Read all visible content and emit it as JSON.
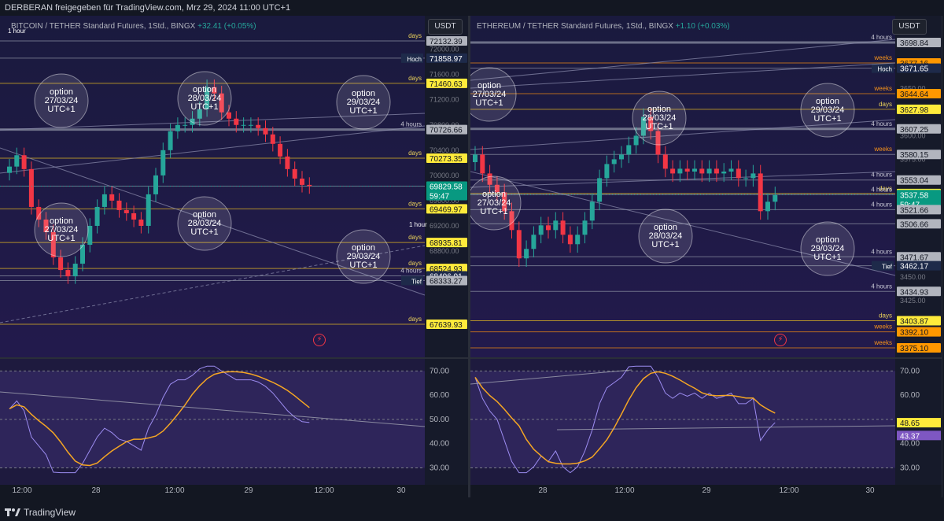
{
  "header": {
    "title": "DERBERAN freigegeben für TradingView.com, Mrz 29, 2024 11:00 UTC+1"
  },
  "footer": {
    "brand": "TradingView",
    "logo_icon": "tradingview-logo-icon"
  },
  "colors": {
    "bg": "#1e1844",
    "up": "#26a69a",
    "down": "#f23645",
    "days": "#ecd35a",
    "weeks": "#f7931a",
    "hours": "#c9c9d6",
    "rsi": "#9c8cf0",
    "rsi_ma": "#f5a623"
  },
  "left": {
    "legend_title": "BITCOIN / TETHER Standard Futures, 1Std., BINGX",
    "legend_change": "+32.41 (+0.05%)",
    "currency": "USDT",
    "price_ticks": [
      "72000.00",
      "71600.00",
      "71200.00",
      "70800.00",
      "70400.00",
      "70000.00",
      "69600.00",
      "69200.00",
      "68800.00",
      "68400.00"
    ],
    "labels": [
      {
        "price": "72132.39",
        "tag": "days",
        "kind": "gray"
      },
      {
        "price": "71858.97",
        "tag": "Hoch",
        "kind": "navy"
      },
      {
        "price": "71460.63",
        "tag": "days",
        "kind": "yellow"
      },
      {
        "price": "70726.66",
        "tag": "4 hours",
        "kind": "gray"
      },
      {
        "price": "70273.35",
        "tag": "days",
        "kind": "yellow"
      },
      {
        "price": "69829.58",
        "tag": "",
        "kind": "teal",
        "countdown": "59:47"
      },
      {
        "price": "69469.97",
        "tag": "days",
        "kind": "yellow"
      },
      {
        "price": "68935.81",
        "tag": "days",
        "kind": "yellow"
      },
      {
        "price": "68524.93",
        "tag": "days",
        "kind": "yellow"
      },
      {
        "price": "68406.91",
        "tag": "4 hours",
        "kind": "navy"
      },
      {
        "price": "68333.27",
        "tag": "Tief",
        "kind": "gray"
      },
      {
        "price": "67639.93",
        "tag": "days",
        "kind": "yellow"
      }
    ],
    "circles": [
      {
        "line1": "option",
        "line2": "27/03/24",
        "line3": "UTC+1"
      },
      {
        "line1": "option",
        "line2": "28/03/24",
        "line3": "UTC+1"
      },
      {
        "line1": "option",
        "line2": "29/03/24",
        "line3": "UTC+1"
      },
      {
        "line1": "option",
        "line2": "27/03/24",
        "line3": "UTC+1"
      },
      {
        "line1": "option",
        "line2": "28/03/24",
        "line3": "UTC+1"
      },
      {
        "line1": "option",
        "line2": "29/03/24",
        "line3": "UTC+1"
      }
    ],
    "line_tags": [
      "1 hour",
      "1 hour"
    ],
    "rsi_ticks": [
      "70.00",
      "60.00",
      "50.00",
      "40.00",
      "30.00"
    ],
    "time_ticks": [
      "12:00",
      "28",
      "12:00",
      "29",
      "12:00",
      "30"
    ]
  },
  "right": {
    "legend_title": "ETHEREUM / TETHER Standard Futures, 1Std., BINGX",
    "legend_change": "+1.10 (+0.03%)",
    "currency": "USDT",
    "price_ticks": [
      "3650.00",
      "3600.00",
      "3575.00",
      "3450.00",
      "3425.00"
    ],
    "labels": [
      {
        "price": "3698.84",
        "tag": "4 hours",
        "kind": "gray"
      },
      {
        "price": "3677.16",
        "tag": "weeks",
        "kind": "orange"
      },
      {
        "price": "3671.65",
        "tag": "Hoch",
        "kind": "navy"
      },
      {
        "price": "3644.64",
        "tag": "weeks",
        "kind": "orange"
      },
      {
        "price": "3627.98",
        "tag": "days",
        "kind": "yellow"
      },
      {
        "price": "3607.25",
        "tag": "4 hours",
        "kind": "gray"
      },
      {
        "price": "3580.15",
        "tag": "weeks",
        "kind": "gray"
      },
      {
        "price": "3553.04",
        "tag": "4 hours",
        "kind": "gray"
      },
      {
        "price": "3538.74",
        "tag": "days",
        "kind": "yellow"
      },
      {
        "price": "3537.58",
        "tag": "4 hours",
        "kind": "teal",
        "countdown": "59:47"
      },
      {
        "price": "3521.66",
        "tag": "4 hours",
        "kind": "gray"
      },
      {
        "price": "3506.66",
        "tag": "",
        "kind": "gray"
      },
      {
        "price": "3471.67",
        "tag": "4 hours",
        "kind": "gray"
      },
      {
        "price": "3462.17",
        "tag": "Tief",
        "kind": "navy"
      },
      {
        "price": "3434.93",
        "tag": "4 hours",
        "kind": "gray"
      },
      {
        "price": "3403.87",
        "tag": "days",
        "kind": "yellow"
      },
      {
        "price": "3392.10",
        "tag": "weeks",
        "kind": "orange"
      },
      {
        "price": "3375.10",
        "tag": "weeks",
        "kind": "orange"
      }
    ],
    "circles": [
      {
        "line1": "option",
        "line2": "27/03/24",
        "line3": "UTC+1"
      },
      {
        "line1": "option",
        "line2": "28/03/24",
        "line3": "UTC+1"
      },
      {
        "line1": "option",
        "line2": "29/03/24",
        "line3": "UTC+1"
      },
      {
        "line1": "option",
        "line2": "27/03/24",
        "line3": "UTC+1"
      },
      {
        "line1": "option",
        "line2": "28/03/24",
        "line3": "UTC+1"
      },
      {
        "line1": "option",
        "line2": "29/03/24",
        "line3": "UTC+1"
      }
    ],
    "rsi_values": [
      "48.65",
      "43.37"
    ],
    "rsi_ticks": [
      "70.00",
      "60.00",
      "40.00",
      "30.00"
    ],
    "time_ticks": [
      "28",
      "12:00",
      "29",
      "12:00",
      "30"
    ]
  },
  "chart_data": [
    {
      "type": "line",
      "title": "BITCOIN / TETHER Standard Futures, 1Std., BINGX",
      "ylim": [
        67500,
        72200
      ],
      "last_price": 69829.58,
      "close": [
        70140,
        70320,
        70100,
        69500,
        69300,
        69100,
        68700,
        68500,
        68400,
        68600,
        68900,
        69200,
        69500,
        69700,
        69600,
        69450,
        69400,
        69300,
        69200,
        69700,
        70000,
        70400,
        70700,
        70800,
        70800,
        70900,
        71050,
        71400,
        71300,
        71000,
        70900,
        70800,
        70800,
        70800,
        70750,
        70650,
        70500,
        70300,
        70100,
        69950,
        69850,
        69829
      ]
    },
    {
      "type": "line",
      "title": "ETHEREUM / TETHER Standard Futures, 1Std., BINGX",
      "ylim": [
        3360,
        3710
      ],
      "last_price": 3537.58,
      "close": [
        3580,
        3560,
        3548,
        3540,
        3520,
        3500,
        3470,
        3480,
        3495,
        3505,
        3500,
        3510,
        3495,
        3485,
        3495,
        3510,
        3530,
        3555,
        3570,
        3575,
        3580,
        3590,
        3600,
        3620,
        3605,
        3580,
        3565,
        3560,
        3565,
        3562,
        3565,
        3560,
        3565,
        3560,
        3562,
        3565,
        3555,
        3555,
        3560,
        3520,
        3530,
        3537
      ]
    }
  ]
}
